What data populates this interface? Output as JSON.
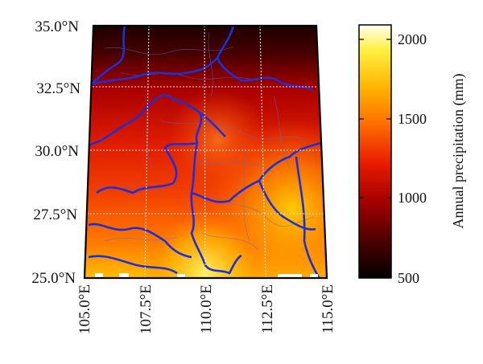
{
  "figure": {
    "type": "precipitation-map",
    "lat_ticks": [
      "35.0°N",
      "32.5°N",
      "30.0°N",
      "27.5°N",
      "25.0°N"
    ],
    "lon_ticks": [
      "105.0°E",
      "107.5°E",
      "110.0°E",
      "112.5°E",
      "115.0°E"
    ],
    "lat_range": [
      25.0,
      35.0
    ],
    "lon_range": [
      105.0,
      115.0
    ],
    "gridlines": "dotted-white",
    "boundary_color": "#1f2fd8",
    "colormap": "hot"
  },
  "colorbar": {
    "label": "Annual precipitation (mm)",
    "ticks": [
      "2000",
      "1500",
      "1000",
      "500"
    ],
    "range": [
      500,
      2100
    ],
    "colors": [
      "#000000",
      "#4a0000",
      "#a30000",
      "#e81a00",
      "#ff6a00",
      "#ffb300",
      "#fff040",
      "#fffff0"
    ]
  }
}
